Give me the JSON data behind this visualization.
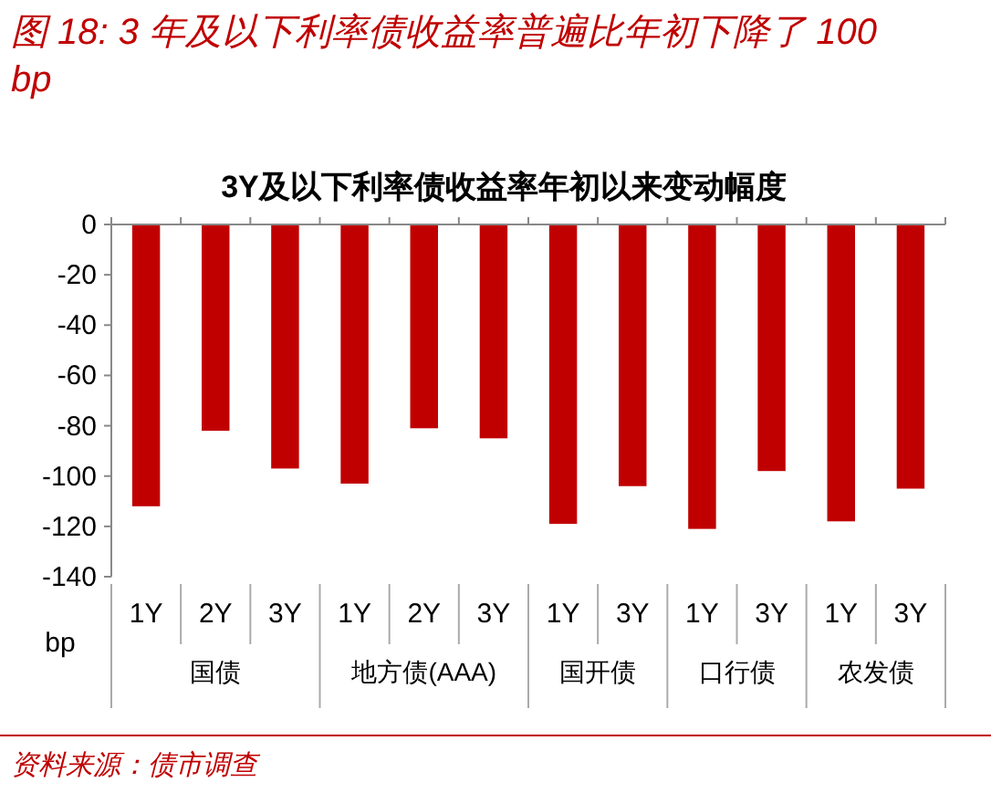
{
  "chart_data": {
    "type": "bar",
    "title": "图 18: 3 年及以下利率债收益率普遍比年初下降了 100bp",
    "subtitle": "3Y及以下利率债收益率年初以来变动幅度",
    "ylabel": "bp",
    "categories": [
      "1Y",
      "2Y",
      "3Y",
      "1Y",
      "2Y",
      "3Y",
      "1Y",
      "3Y",
      "1Y",
      "3Y",
      "1Y",
      "3Y"
    ],
    "values": [
      -112,
      -82,
      -97,
      -103,
      -81,
      -85,
      -119,
      -104,
      -121,
      -98,
      -118,
      -105
    ],
    "color": "#c00000",
    "ylim": [
      -140,
      0
    ],
    "yticks": [
      0,
      -20,
      -40,
      -60,
      -80,
      -100,
      -120,
      -140
    ],
    "grid": false,
    "annotations": [
      "国债",
      "地方债(AAA)",
      "国开债",
      "口行债",
      "农发债",
      "资料来源：债市调查"
    ]
  }
}
